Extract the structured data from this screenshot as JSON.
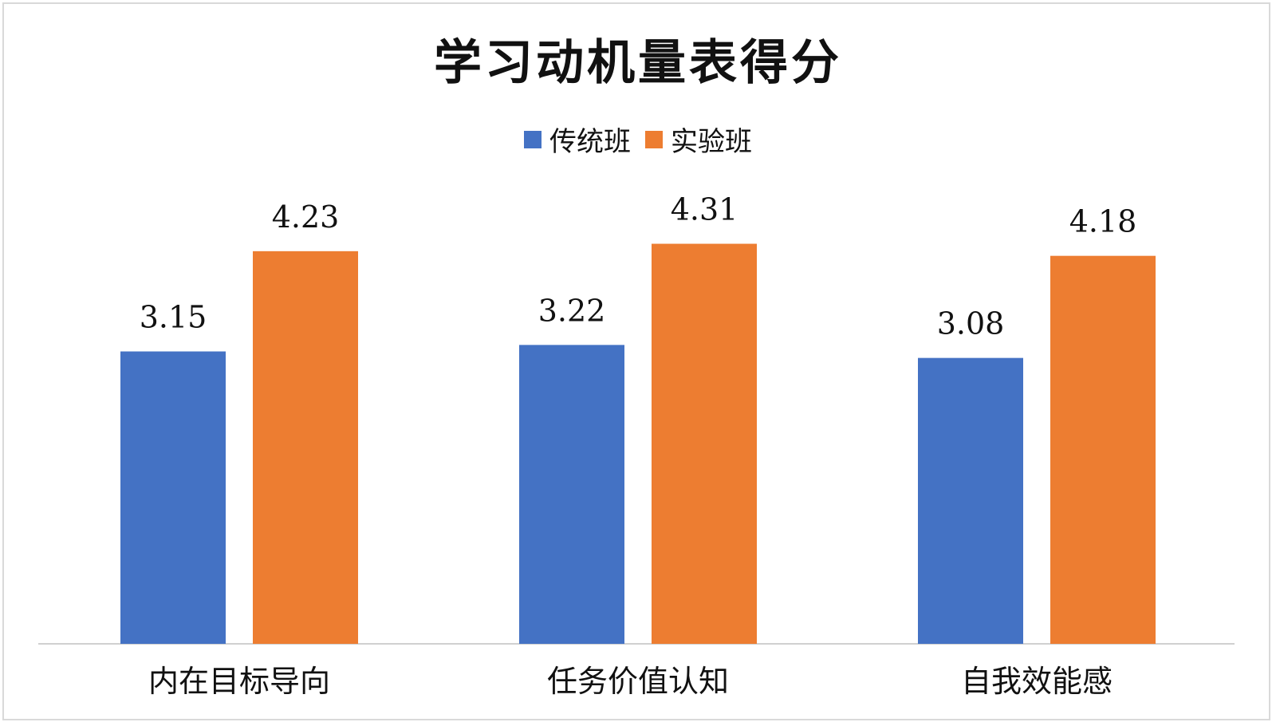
{
  "chart_data": {
    "type": "bar",
    "title": "学习动机量表得分",
    "categories": [
      "内在目标导向",
      "任务价值认知",
      "自我效能感"
    ],
    "series": [
      {
        "name": "传统班",
        "values": [
          3.15,
          3.22,
          3.08
        ],
        "color": "#4472c4"
      },
      {
        "name": "实验班",
        "values": [
          4.23,
          4.31,
          4.18
        ],
        "color": "#ed7d31"
      }
    ],
    "value_labels": [
      [
        "3.15",
        "3.22",
        "3.08"
      ],
      [
        "4.23",
        "4.31",
        "4.18"
      ]
    ],
    "ylim": [
      0,
      5.2
    ],
    "grid": false,
    "legend_position": "top"
  }
}
